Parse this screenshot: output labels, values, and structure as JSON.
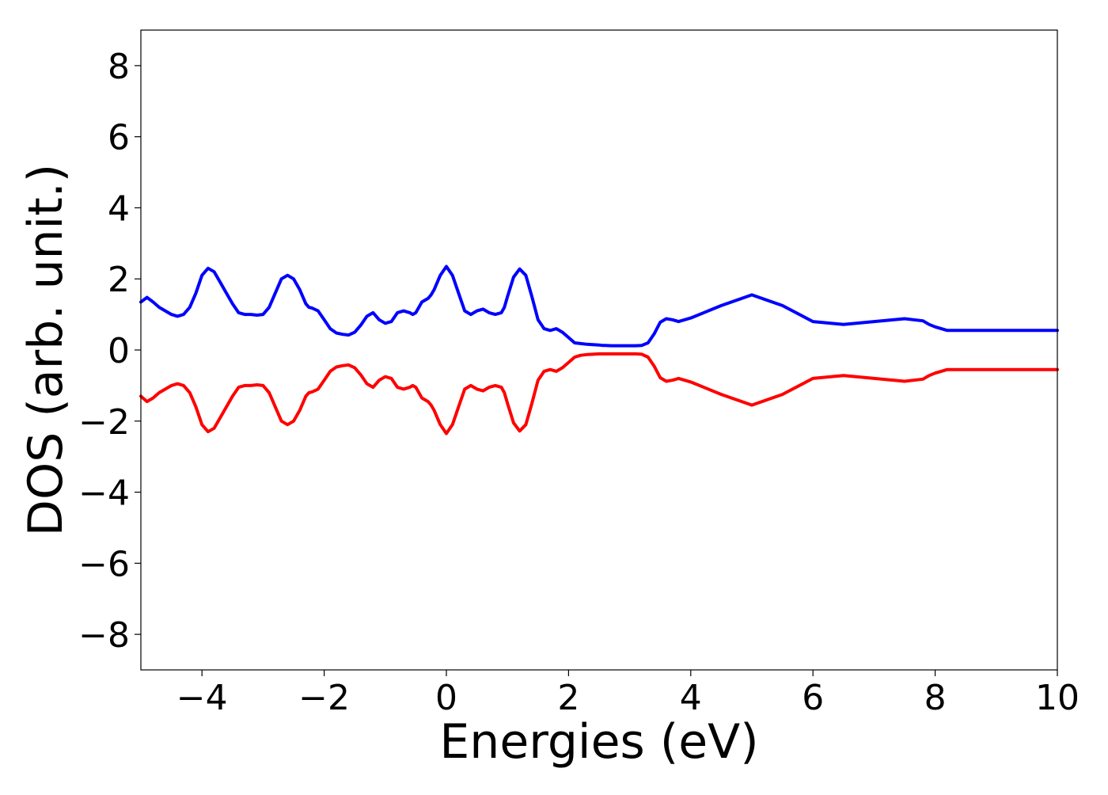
{
  "chart_data": {
    "type": "line",
    "title": "",
    "xlabel": "Energies (eV)",
    "ylabel": "DOS (arb. unit.)",
    "xlim": [
      -5,
      10
    ],
    "ylim": [
      -9,
      9
    ],
    "xticks": [
      -4,
      -2,
      0,
      2,
      4,
      6,
      8,
      10
    ],
    "xtick_labels": [
      "−4",
      "−2",
      "0",
      "2",
      "4",
      "6",
      "8",
      "10"
    ],
    "yticks": [
      8,
      6,
      4,
      2,
      0,
      -2,
      -4,
      -6,
      -8
    ],
    "ytick_labels": [
      "8",
      "6",
      "4",
      "2",
      "0",
      "−2",
      "−4",
      "−6",
      "−8"
    ],
    "grid": false,
    "legend": "none",
    "series": [
      {
        "color": "#0000ff",
        "x": [
          -5.0,
          -4.9,
          -4.8,
          -4.7,
          -4.6,
          -4.5,
          -4.4,
          -4.3,
          -4.2,
          -4.1,
          -4.0,
          -3.9,
          -3.8,
          -3.75,
          -3.7,
          -3.6,
          -3.5,
          -3.4,
          -3.3,
          -3.2,
          -3.1,
          -3.0,
          -2.9,
          -2.8,
          -2.7,
          -2.6,
          -2.5,
          -2.4,
          -2.3,
          -2.25,
          -2.2,
          -2.1,
          -2.0,
          -1.9,
          -1.8,
          -1.7,
          -1.6,
          -1.5,
          -1.4,
          -1.3,
          -1.2,
          -1.1,
          -1.0,
          -0.9,
          -0.8,
          -0.7,
          -0.6,
          -0.55,
          -0.5,
          -0.4,
          -0.3,
          -0.25,
          -0.2,
          -0.1,
          0.0,
          0.1,
          0.2,
          0.3,
          0.4,
          0.5,
          0.6,
          0.7,
          0.8,
          0.9,
          0.95,
          1.0,
          1.1,
          1.2,
          1.3,
          1.4,
          1.5,
          1.6,
          1.7,
          1.8,
          1.9,
          2.0,
          2.1,
          2.2,
          2.3,
          2.4,
          2.5,
          2.55,
          2.6,
          2.7,
          2.8,
          2.9,
          3.0,
          3.1,
          3.2,
          3.3,
          3.4,
          3.5,
          3.6,
          3.7,
          3.8,
          4.0,
          4.5,
          5.0,
          5.5,
          6.0,
          6.5,
          7.0,
          7.5,
          7.8,
          7.9,
          8.0,
          8.1,
          8.2,
          8.3,
          8.4,
          8.5,
          8.6,
          8.7,
          8.8,
          8.9,
          9.0,
          9.1,
          9.2,
          9.3,
          9.4,
          9.5,
          9.6,
          9.7,
          9.8,
          9.9,
          10.0
        ],
        "y": [
          1.35,
          1.48,
          1.35,
          1.2,
          1.1,
          1.0,
          0.95,
          1.0,
          1.2,
          1.6,
          2.1,
          2.3,
          2.2,
          2.05,
          1.9,
          1.6,
          1.3,
          1.05,
          1.0,
          1.0,
          0.98,
          1.0,
          1.2,
          1.6,
          2.0,
          2.1,
          2.0,
          1.7,
          1.3,
          1.2,
          1.18,
          1.1,
          0.85,
          0.6,
          0.48,
          0.44,
          0.42,
          0.5,
          0.7,
          0.95,
          1.05,
          0.85,
          0.75,
          0.8,
          1.05,
          1.1,
          1.05,
          1.0,
          1.05,
          1.35,
          1.45,
          1.55,
          1.7,
          2.1,
          2.35,
          2.1,
          1.6,
          1.1,
          1.0,
          1.1,
          1.15,
          1.05,
          1.0,
          1.05,
          1.2,
          1.5,
          2.05,
          2.28,
          2.1,
          1.5,
          0.85,
          0.6,
          0.55,
          0.6,
          0.5,
          0.35,
          0.2,
          0.18,
          0.16,
          0.15,
          0.14,
          0.13,
          0.13,
          0.12,
          0.12,
          0.12,
          0.12,
          0.12,
          0.13,
          0.2,
          0.45,
          0.78,
          0.88,
          0.85,
          0.8,
          0.9,
          1.25,
          1.55,
          1.25,
          0.8,
          0.72,
          0.8,
          0.88,
          0.82,
          0.72,
          0.65,
          0.6,
          0.55,
          0.55,
          0.55,
          0.55,
          0.55,
          0.55,
          0.55,
          0.55,
          0.55,
          0.55,
          0.55,
          0.55,
          0.55,
          0.55,
          0.55,
          0.55,
          0.55,
          0.55,
          0.55
        ]
      },
      {
        "color": "#ff0000",
        "x": [
          -5.0,
          -4.9,
          -4.8,
          -4.7,
          -4.6,
          -4.5,
          -4.4,
          -4.3,
          -4.2,
          -4.1,
          -4.0,
          -3.9,
          -3.8,
          -3.75,
          -3.7,
          -3.6,
          -3.5,
          -3.4,
          -3.3,
          -3.2,
          -3.1,
          -3.0,
          -2.9,
          -2.8,
          -2.7,
          -2.6,
          -2.5,
          -2.4,
          -2.3,
          -2.25,
          -2.2,
          -2.1,
          -2.0,
          -1.9,
          -1.8,
          -1.7,
          -1.6,
          -1.5,
          -1.4,
          -1.3,
          -1.2,
          -1.1,
          -1.0,
          -0.9,
          -0.8,
          -0.7,
          -0.6,
          -0.55,
          -0.5,
          -0.4,
          -0.3,
          -0.25,
          -0.2,
          -0.1,
          0.0,
          0.1,
          0.2,
          0.3,
          0.4,
          0.5,
          0.6,
          0.7,
          0.8,
          0.9,
          0.95,
          1.0,
          1.1,
          1.2,
          1.3,
          1.4,
          1.5,
          1.6,
          1.7,
          1.8,
          1.9,
          2.0,
          2.1,
          2.2,
          2.3,
          2.4,
          2.5,
          2.55,
          2.6,
          2.7,
          2.8,
          2.9,
          3.0,
          3.1,
          3.2,
          3.3,
          3.4,
          3.5,
          3.6,
          3.7,
          3.8,
          4.0,
          4.5,
          5.0,
          5.5,
          6.0,
          6.5,
          7.0,
          7.5,
          7.8,
          7.9,
          8.0,
          8.1,
          8.2,
          8.3,
          8.4,
          8.5,
          8.6,
          8.7,
          8.8,
          8.9,
          9.0,
          9.1,
          9.2,
          9.3,
          9.4,
          9.5,
          9.6,
          9.7,
          9.8,
          9.9,
          10.0
        ],
        "y": [
          -1.3,
          -1.45,
          -1.35,
          -1.2,
          -1.1,
          -1.0,
          -0.95,
          -1.0,
          -1.2,
          -1.6,
          -2.1,
          -2.3,
          -2.2,
          -2.05,
          -1.9,
          -1.6,
          -1.3,
          -1.05,
          -1.0,
          -1.0,
          -0.98,
          -1.0,
          -1.2,
          -1.6,
          -2.0,
          -2.1,
          -2.0,
          -1.7,
          -1.3,
          -1.2,
          -1.18,
          -1.1,
          -0.85,
          -0.6,
          -0.48,
          -0.44,
          -0.42,
          -0.5,
          -0.7,
          -0.95,
          -1.05,
          -0.85,
          -0.75,
          -0.8,
          -1.05,
          -1.1,
          -1.05,
          -1.0,
          -1.05,
          -1.35,
          -1.45,
          -1.55,
          -1.7,
          -2.1,
          -2.35,
          -2.1,
          -1.6,
          -1.1,
          -1.0,
          -1.1,
          -1.15,
          -1.05,
          -1.0,
          -1.05,
          -1.2,
          -1.5,
          -2.05,
          -2.28,
          -2.1,
          -1.5,
          -0.85,
          -0.6,
          -0.55,
          -0.6,
          -0.5,
          -0.35,
          -0.2,
          -0.15,
          -0.13,
          -0.12,
          -0.11,
          -0.11,
          -0.11,
          -0.11,
          -0.11,
          -0.11,
          -0.11,
          -0.11,
          -0.12,
          -0.2,
          -0.45,
          -0.78,
          -0.88,
          -0.85,
          -0.8,
          -0.9,
          -1.25,
          -1.55,
          -1.25,
          -0.8,
          -0.72,
          -0.8,
          -0.88,
          -0.82,
          -0.72,
          -0.65,
          -0.6,
          -0.55,
          -0.55,
          -0.55,
          -0.55,
          -0.55,
          -0.55,
          -0.55,
          -0.55,
          -0.55,
          -0.55,
          -0.55,
          -0.55,
          -0.55,
          -0.55,
          -0.55,
          -0.55,
          -0.55,
          -0.55,
          -0.55
        ]
      }
    ]
  }
}
